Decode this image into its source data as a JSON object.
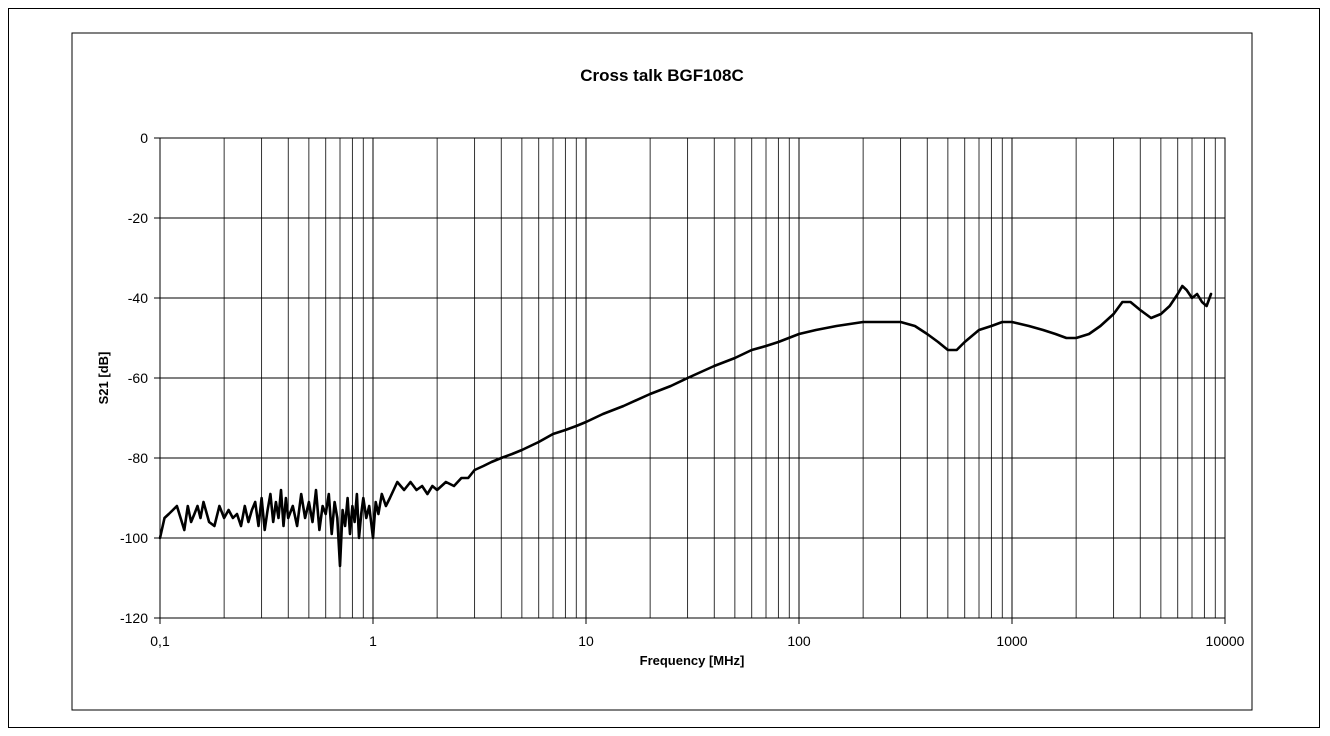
{
  "chart_data": {
    "type": "line",
    "title": "Cross talk BGF108C",
    "xlabel": "Frequency [MHz]",
    "ylabel": "S21 [dB]",
    "x_scale": "log",
    "xlim": [
      0.1,
      10000
    ],
    "ylim": [
      -120,
      0
    ],
    "x_tick_values": [
      0.1,
      1,
      10,
      100,
      1000,
      10000
    ],
    "x_tick_labels": [
      "0,1",
      "1",
      "10",
      "100",
      "1000",
      "10000"
    ],
    "y_tick_values": [
      0,
      -20,
      -40,
      -60,
      -80,
      -100,
      -120
    ],
    "y_tick_labels": [
      "0",
      "-20",
      "-40",
      "-60",
      "-80",
      "-100",
      "-120"
    ],
    "grid": true,
    "legend": "none",
    "line_color": "#000000",
    "series": [
      {
        "x": [
          0.1,
          0.105,
          0.11,
          0.115,
          0.12,
          0.125,
          0.13,
          0.135,
          0.14,
          0.145,
          0.15,
          0.155,
          0.16,
          0.17,
          0.18,
          0.19,
          0.2,
          0.21,
          0.22,
          0.23,
          0.24,
          0.25,
          0.26,
          0.27,
          0.28,
          0.29,
          0.3,
          0.31,
          0.32,
          0.33,
          0.34,
          0.35,
          0.36,
          0.37,
          0.38,
          0.39,
          0.4,
          0.42,
          0.44,
          0.46,
          0.48,
          0.5,
          0.52,
          0.54,
          0.56,
          0.58,
          0.6,
          0.62,
          0.64,
          0.66,
          0.68,
          0.7,
          0.72,
          0.74,
          0.76,
          0.78,
          0.8,
          0.82,
          0.84,
          0.86,
          0.88,
          0.9,
          0.93,
          0.96,
          1.0,
          1.03,
          1.06,
          1.1,
          1.15,
          1.2,
          1.3,
          1.4,
          1.5,
          1.6,
          1.7,
          1.8,
          1.9,
          2.0,
          2.2,
          2.4,
          2.6,
          2.8,
          3.0,
          3.3,
          3.6,
          4.0,
          4.5,
          5,
          6,
          7,
          8,
          9,
          10,
          12,
          15,
          20,
          25,
          30,
          40,
          50,
          60,
          70,
          80,
          100,
          120,
          150,
          200,
          250,
          300,
          350,
          400,
          450,
          500,
          550,
          600,
          700,
          800,
          900,
          1000,
          1200,
          1400,
          1600,
          1800,
          2000,
          2300,
          2600,
          3000,
          3300,
          3600,
          4000,
          4500,
          5000,
          5500,
          6000,
          6300,
          6600,
          7000,
          7400,
          7800,
          8200,
          8600
        ],
        "y": [
          -100,
          -95,
          -94,
          -93,
          -92,
          -95,
          -98,
          -92,
          -96,
          -94,
          -92,
          -95,
          -91,
          -96,
          -97,
          -92,
          -95,
          -93,
          -95,
          -94,
          -97,
          -92,
          -96,
          -93,
          -91,
          -97,
          -90,
          -98,
          -93,
          -89,
          -96,
          -91,
          -95,
          -88,
          -97,
          -90,
          -95,
          -92,
          -97,
          -89,
          -95,
          -91,
          -96,
          -88,
          -98,
          -92,
          -94,
          -89,
          -99,
          -91,
          -95,
          -107,
          -93,
          -97,
          -90,
          -99,
          -92,
          -96,
          -89,
          -100,
          -94,
          -90,
          -95,
          -92,
          -100,
          -91,
          -94,
          -89,
          -92,
          -90,
          -86,
          -88,
          -86,
          -88,
          -87,
          -89,
          -87,
          -88,
          -86,
          -87,
          -85,
          -85,
          -83,
          -82,
          -81,
          -80,
          -79,
          -78,
          -76,
          -74,
          -73,
          -72,
          -71,
          -69,
          -67,
          -64,
          -62,
          -60,
          -57,
          -55,
          -53,
          -52,
          -51,
          -49,
          -48,
          -47,
          -46,
          -46,
          -46,
          -47,
          -49,
          -51,
          -53,
          -53,
          -51,
          -48,
          -47,
          -46,
          -46,
          -47,
          -48,
          -49,
          -50,
          -50,
          -49,
          -47,
          -44,
          -41,
          -41,
          -43,
          -45,
          -44,
          -42,
          -39,
          -37,
          -38,
          -40,
          -39,
          -41,
          -42,
          -39
        ]
      }
    ]
  }
}
